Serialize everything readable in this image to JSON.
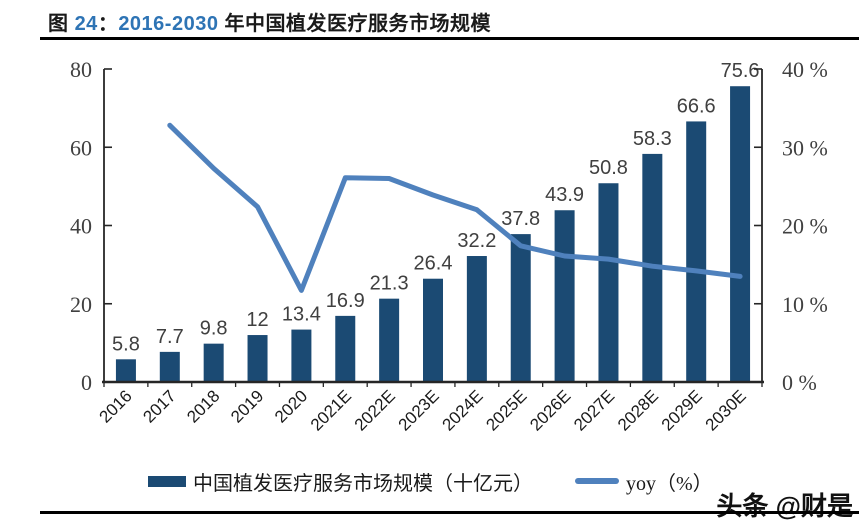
{
  "figure": {
    "title_text": "图 24：2016-2030 年中国植发医疗服务市场规模",
    "title_parts": [
      {
        "text": "图 ",
        "color": "#1a1a1a"
      },
      {
        "text": "24",
        "color": "#2E74B5"
      },
      {
        "text": "：",
        "color": "#1a1a1a"
      },
      {
        "text": "2016-2030",
        "color": "#2E74B5"
      },
      {
        "text": " 年中国植发医疗服务市场规模",
        "color": "#1a1a1a"
      }
    ],
    "watermark": "头条 @财是"
  },
  "chart_data": {
    "type": "bar+line",
    "title": "2016-2030 年中国植发医疗服务市场规模",
    "categories": [
      "2016",
      "2017",
      "2018",
      "2019",
      "2020",
      "2021E",
      "2022E",
      "2023E",
      "2024E",
      "2025E",
      "2026E",
      "2027E",
      "2028E",
      "2029E",
      "2030E"
    ],
    "series": [
      {
        "name": "中国植发医疗服务市场规模（十亿元）",
        "type": "bar",
        "axis": "left",
        "color": "#1B4A73",
        "values": [
          5.8,
          7.7,
          9.8,
          12,
          13.4,
          16.9,
          21.3,
          26.4,
          32.2,
          37.8,
          43.9,
          50.8,
          58.3,
          66.6,
          75.6
        ],
        "value_labels": [
          "5.8",
          "7.7",
          "9.8",
          "12",
          "13.4",
          "16.9",
          "21.3",
          "26.4",
          "32.2",
          "37.8",
          "43.9",
          "50.8",
          "58.3",
          "66.6",
          "75.6"
        ]
      },
      {
        "name": "yoy（%）",
        "type": "line",
        "axis": "right",
        "color": "#4F81BD",
        "values": [
          null,
          32.8,
          27.3,
          22.4,
          11.7,
          26.1,
          26.0,
          23.9,
          22.0,
          17.4,
          16.1,
          15.7,
          14.8,
          14.2,
          13.5
        ]
      }
    ],
    "left_axis": {
      "min": 0,
      "max": 80,
      "tick_values": [
        0,
        20,
        40,
        60,
        80
      ],
      "tick_labels": [
        "0",
        "20",
        "40",
        "60",
        "80"
      ]
    },
    "right_axis": {
      "min": 0,
      "max": 40,
      "tick_values": [
        0,
        10,
        20,
        30,
        40
      ],
      "tick_labels": [
        "0 %",
        "10 %",
        "20 %",
        "30 %",
        "40 %"
      ]
    },
    "grid": false,
    "legend_position": "bottom"
  },
  "colors": {
    "axis_line": "#262626",
    "tick_label": "#404040",
    "bar_label": "#404040",
    "x_label": "#1a1a1a"
  }
}
